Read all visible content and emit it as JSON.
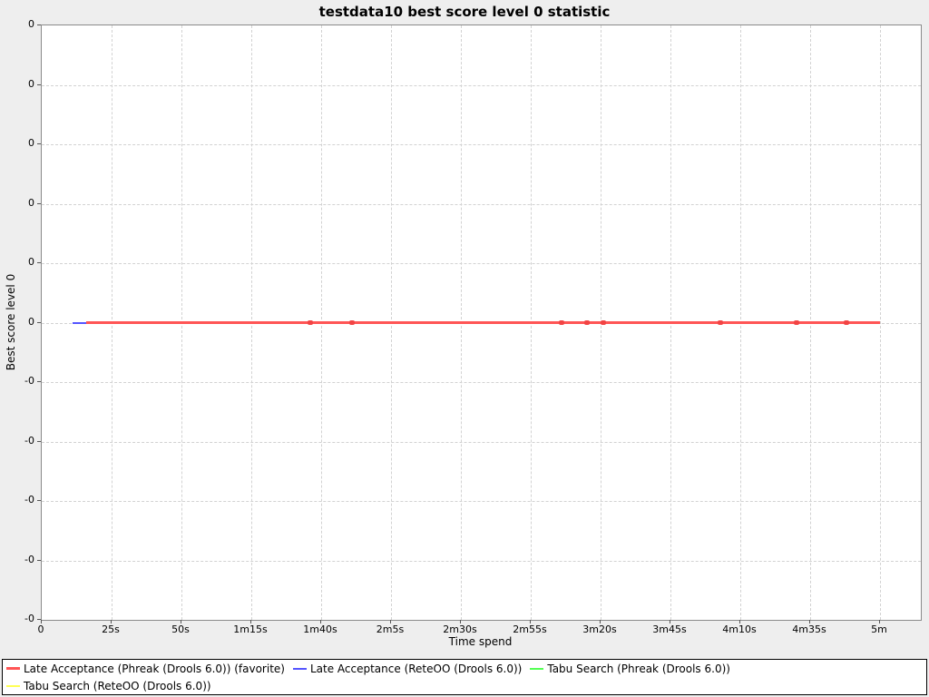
{
  "title": "testdata10 best score level 0 statistic",
  "axes": {
    "x_label": "Time spend",
    "y_label": "Best score level 0"
  },
  "colors": {
    "background": "#eeeeee",
    "plot_background": "#ffffff",
    "gridline": "#d2d2d2",
    "plot_border": "#8a8a8a",
    "legend_border": "#000000",
    "legend_background": "#ffffff",
    "series_red": "#ff5555",
    "series_blue": "#5555ff",
    "series_green": "#55ff55",
    "series_yellow": "#ffff55"
  },
  "chart_data": {
    "type": "line",
    "title": "testdata10 best score level 0 statistic",
    "xlabel": "Time spend",
    "ylabel": "Best score level 0",
    "x_unit": "seconds",
    "x_tick_seconds": [
      0,
      25,
      50,
      75,
      100,
      125,
      150,
      175,
      200,
      225,
      250,
      275,
      300
    ],
    "x_tick_labels": [
      "0",
      "25s",
      "50s",
      "1m15s",
      "1m40s",
      "2m5s",
      "2m30s",
      "2m55s",
      "3m20s",
      "3m45s",
      "4m10s",
      "4m35s",
      "5m"
    ],
    "x_axis_max_seconds": 314,
    "y_tick_labels": [
      "0",
      "0",
      "0",
      "0",
      "0",
      "0",
      "-0",
      "-0",
      "-0",
      "-0",
      "-0"
    ],
    "y_zero_tick_index": 5,
    "grid": true,
    "legend_position": "bottom",
    "series": [
      {
        "name": "Late Acceptance (Phreak (Drools 6.0)) (favorite)",
        "color": "#ff5555",
        "line_width": 3,
        "start_seconds": 16,
        "end_seconds": 300,
        "constant_value": 0,
        "marker_seconds": [
          96,
          111,
          186,
          195,
          201,
          243,
          270,
          288
        ],
        "marker_color": "#f24444",
        "z": 4
      },
      {
        "name": "Late Acceptance (ReteOO (Drools 6.0))",
        "color": "#5555ff",
        "line_width": 2,
        "start_seconds": 11,
        "end_seconds": 300,
        "constant_value": 0,
        "z": 3
      },
      {
        "name": "Tabu Search (Phreak (Drools 6.0))",
        "color": "#55ff55",
        "line_width": 2,
        "start_seconds": 16,
        "end_seconds": 300,
        "constant_value": 0,
        "z": 1
      },
      {
        "name": "Tabu Search (ReteOO (Drools 6.0))",
        "color": "#ffff55",
        "line_width": 2,
        "start_seconds": 16,
        "end_seconds": 300,
        "constant_value": 0,
        "z": 2
      }
    ]
  },
  "legend": {
    "rows": [
      [
        {
          "label": "Late Acceptance (Phreak (Drools 6.0)) (favorite)",
          "color": "#ff5555",
          "line_width": 3
        },
        {
          "label": "Late Acceptance (ReteOO (Drools 6.0))",
          "color": "#5555ff",
          "line_width": 2
        },
        {
          "label": "Tabu Search (Phreak (Drools 6.0))",
          "color": "#55ff55",
          "line_width": 2
        }
      ],
      [
        {
          "label": "Tabu Search (ReteOO (Drools 6.0))",
          "color": "#ffff55",
          "line_width": 2
        }
      ]
    ]
  }
}
